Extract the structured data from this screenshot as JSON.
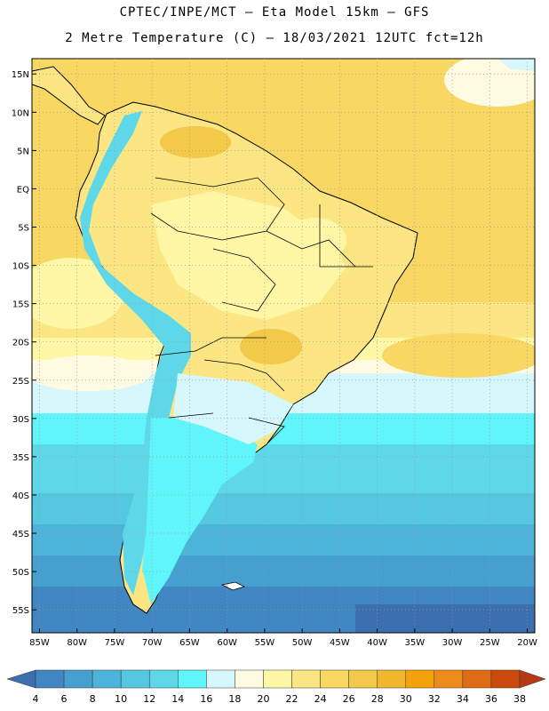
{
  "header": {
    "title_line1": "CPTEC/INPE/MCT –  Eta Model 15km – GFS",
    "title_line2": "2 Metre Temperature (C) – 18/03/2021 12UTC fct=12h"
  },
  "map": {
    "lat_labels": [
      "15N",
      "10N",
      "5N",
      "EQ",
      "5S",
      "10S",
      "15S",
      "20S",
      "25S",
      "30S",
      "35S",
      "40S",
      "45S",
      "50S",
      "55S"
    ],
    "lon_labels": [
      "85W",
      "80W",
      "75W",
      "70W",
      "65W",
      "60W",
      "55W",
      "50W",
      "45W",
      "40W",
      "35W",
      "30W",
      "25W",
      "20W"
    ],
    "lat_values": [
      15,
      10,
      5,
      0,
      -5,
      -10,
      -15,
      -20,
      -25,
      -30,
      -35,
      -40,
      -45,
      -50,
      -55
    ],
    "lon_values": [
      -85,
      -80,
      -75,
      -70,
      -65,
      -60,
      -55,
      -50,
      -45,
      -40,
      -35,
      -30,
      -25,
      -20
    ],
    "lat_range": [
      -58,
      17
    ],
    "lon_range": [
      -86,
      -19
    ],
    "grid": true
  },
  "colorbar": {
    "labels": [
      "4",
      "6",
      "8",
      "10",
      "12",
      "14",
      "16",
      "18",
      "20",
      "22",
      "24",
      "26",
      "28",
      "30",
      "32",
      "34",
      "36",
      "38"
    ],
    "colors": [
      "#3b6fb0",
      "#3f86c2",
      "#46a0cf",
      "#4cb4da",
      "#55c7e1",
      "#5ed8e8",
      "#5ff5fb",
      "#d6f7fb",
      "#fffbe3",
      "#fff7a6",
      "#fbe683",
      "#f8d862",
      "#f3c94a",
      "#f1b82d",
      "#f4a20c",
      "#ec8a1a",
      "#e06b16",
      "#cb4a0b",
      "#b53a14"
    ]
  }
}
